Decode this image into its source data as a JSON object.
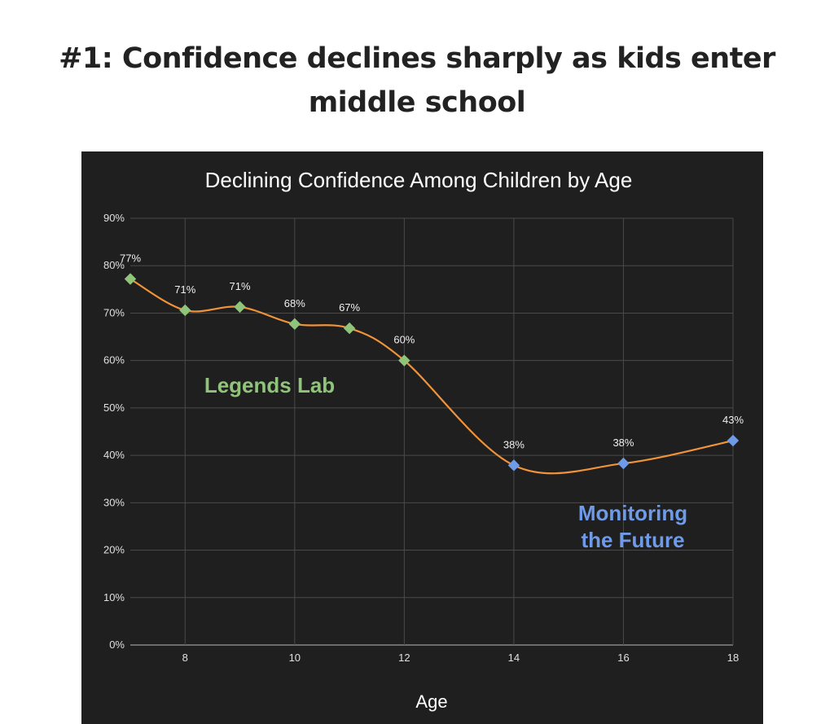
{
  "heading": {
    "line1": "#1: Confidence declines sharply as kids enter",
    "line2": "middle school"
  },
  "chart_data": {
    "type": "line",
    "title": "Declining Confidence Among Children by Age",
    "xlabel": "Age",
    "ylabel": "",
    "xlim": [
      7,
      18
    ],
    "ylim": [
      0,
      90
    ],
    "x_ticks": [
      8,
      10,
      12,
      14,
      16,
      18
    ],
    "y_ticks": [
      0,
      10,
      20,
      30,
      40,
      50,
      60,
      70,
      80,
      90
    ],
    "y_tick_format": "percent",
    "grid": true,
    "line_color": "#f0933a",
    "series": [
      {
        "name": "Legends Lab",
        "color": "#8fc47a",
        "marker": "diamond",
        "x": [
          7,
          8,
          9,
          10,
          11,
          12
        ],
        "values": [
          77.2,
          70.6,
          71.3,
          67.7,
          66.8,
          60.0
        ],
        "labels": [
          "77%",
          "71%",
          "71%",
          "68%",
          "67%",
          "60%"
        ]
      },
      {
        "name": "Monitoring the Future",
        "color": "#6e9ae8",
        "marker": "diamond",
        "x": [
          14,
          16,
          18
        ],
        "values": [
          37.9,
          38.3,
          43.1
        ],
        "labels": [
          "38%",
          "38%",
          "43%"
        ]
      }
    ],
    "annotations": [
      {
        "text": "Legends Lab",
        "color": "#8fc47a"
      },
      {
        "text": "Monitoring",
        "color": "#6e9ae8"
      },
      {
        "text": "the Future",
        "color": "#6e9ae8"
      }
    ]
  }
}
